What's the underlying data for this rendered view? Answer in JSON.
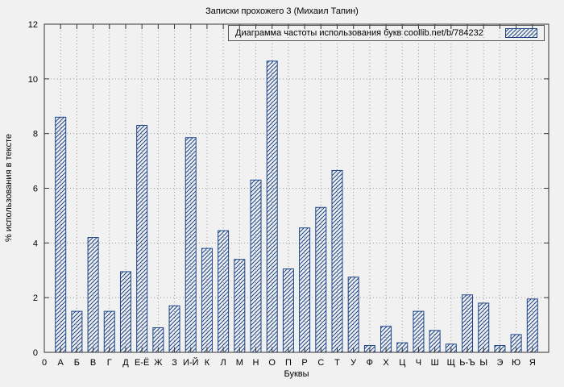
{
  "chart_data": {
    "type": "bar",
    "title": "Записки прохожего 3 (Михаил Тапин)",
    "legend": "Диаграмма частоты использования букв coollib.net/b/784232",
    "legend_position": "top-right",
    "xlabel": "Буквы",
    "ylabel": "% использования в тексте",
    "ylim": [
      0,
      12
    ],
    "yticks": [
      0,
      2,
      4,
      6,
      8,
      10,
      12
    ],
    "origin_label": "0",
    "grid": true,
    "categories": [
      "А",
      "Б",
      "В",
      "Г",
      "Д",
      "Е-Ё",
      "Ж",
      "З",
      "И-Й",
      "К",
      "Л",
      "М",
      "Н",
      "О",
      "П",
      "Р",
      "С",
      "Т",
      "У",
      "Ф",
      "Х",
      "Ц",
      "Ч",
      "Ш",
      "Щ",
      "Ь-Ъ",
      "Ы",
      "Э",
      "Ю",
      "Я"
    ],
    "values": [
      8.6,
      1.5,
      4.2,
      1.5,
      2.95,
      8.3,
      0.9,
      1.7,
      7.85,
      3.8,
      4.45,
      3.4,
      6.3,
      10.65,
      3.05,
      4.55,
      5.3,
      6.65,
      2.75,
      0.25,
      0.95,
      0.35,
      1.5,
      0.8,
      0.3,
      2.1,
      1.8,
      0.25,
      0.65,
      1.95
    ],
    "colors": {
      "bar_stroke": "#1c4587",
      "grid": "#9a9a9a",
      "background": "#f1f1f1",
      "axis": "#333333"
    }
  }
}
